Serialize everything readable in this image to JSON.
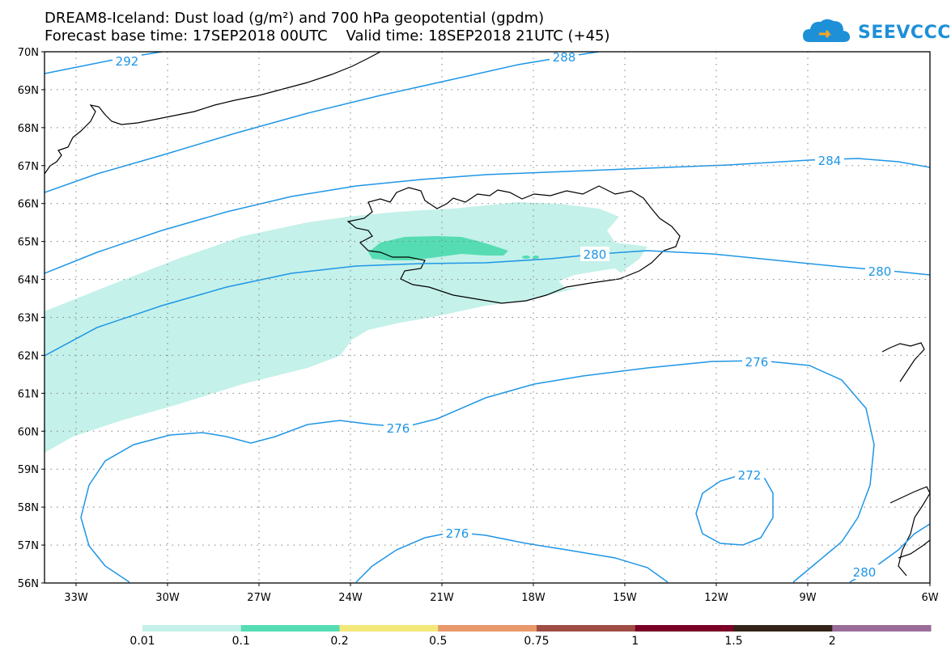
{
  "title_line1": "DREAM8-Iceland: Dust load (g/m²) and 700 hPa geopotential (gpdm)",
  "title_line2": "Forecast base time: 17SEP2018 00UTC    Valid time: 18SEP2018 21UTC (+45)",
  "logo_text": "SEEVCCC",
  "lat_labels": [
    "70N",
    "69N",
    "68N",
    "67N",
    "66N",
    "65N",
    "64N",
    "63N",
    "62N",
    "61N",
    "60N",
    "59N",
    "58N",
    "57N",
    "56N"
  ],
  "lon_labels": [
    "33W",
    "30W",
    "27W",
    "24W",
    "21W",
    "18W",
    "15W",
    "12W",
    "9W",
    "6W"
  ],
  "contour_labels": [
    "292",
    "288",
    "284",
    "280",
    "280",
    "276",
    "276",
    "272",
    "276",
    "280"
  ],
  "colorbar": {
    "ticks": [
      "0.01",
      "0.1",
      "0.2",
      "0.5",
      "0.75",
      "1",
      "1.5",
      "2"
    ],
    "colors": [
      "#c4f1ea",
      "#55dcb2",
      "#f3e87a",
      "#e8986a",
      "#a04d46",
      "#7a0025",
      "#332318",
      "#9a6c9a"
    ]
  },
  "colors": {
    "contour": "#1e96e6",
    "coast": "#000000",
    "dust_low": "#c4f1ea",
    "dust_mid": "#55dcb2"
  }
}
